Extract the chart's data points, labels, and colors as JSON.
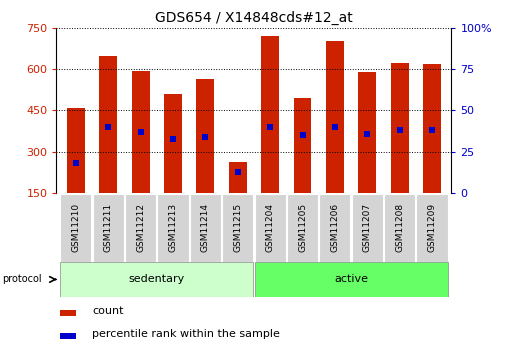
{
  "title": "GDS654 / X14848cds#12_at",
  "samples": [
    "GSM11210",
    "GSM11211",
    "GSM11212",
    "GSM11213",
    "GSM11214",
    "GSM11215",
    "GSM11204",
    "GSM11205",
    "GSM11206",
    "GSM11207",
    "GSM11208",
    "GSM11209"
  ],
  "counts": [
    460,
    648,
    594,
    510,
    565,
    262,
    718,
    495,
    700,
    590,
    620,
    618
  ],
  "percentile_ranks_pct": [
    18,
    40,
    37,
    33,
    34,
    13,
    40,
    35,
    40,
    36,
    38,
    38
  ],
  "groups": [
    {
      "name": "sedentary",
      "indices": [
        0,
        1,
        2,
        3,
        4,
        5
      ],
      "color": "#ccffcc"
    },
    {
      "name": "active",
      "indices": [
        6,
        7,
        8,
        9,
        10,
        11
      ],
      "color": "#66ff66"
    }
  ],
  "ylim_left": [
    150,
    750
  ],
  "ylim_right": [
    0,
    100
  ],
  "yticks_left": [
    150,
    300,
    450,
    600,
    750
  ],
  "yticks_right": [
    0,
    25,
    50,
    75,
    100
  ],
  "bar_color": "#cc2200",
  "dot_color": "#0000cc",
  "bar_width": 0.55,
  "grid_color": "#000000",
  "left_axis_color": "#cc2200",
  "right_axis_color": "#0000cc",
  "legend_items": [
    "count",
    "percentile rank within the sample"
  ]
}
